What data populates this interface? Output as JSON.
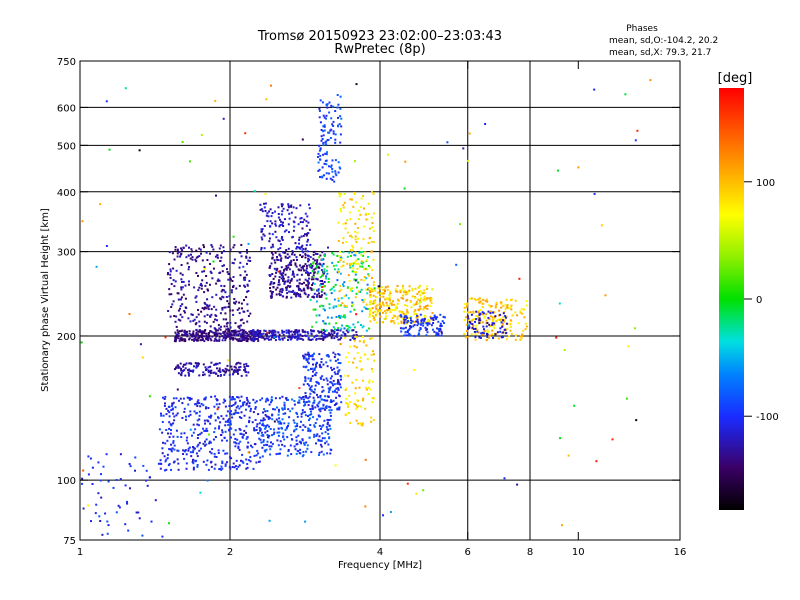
{
  "chart_data": {
    "type": "scatter",
    "title": "Tromsø 20150923 23:02:00–23:03:43",
    "subtitle": "RwPretec (8p)",
    "xlabel": "Frequency [MHz]",
    "ylabel": "Stationary phase Virtual Height [km]",
    "x_scale": "log",
    "y_scale": "log",
    "xlim": [
      1,
      16
    ],
    "ylim": [
      75,
      750
    ],
    "x_ticks": [
      1,
      2,
      4,
      6,
      8,
      10,
      16
    ],
    "x_tick_labels": [
      "1",
      "2",
      "4",
      "6",
      "8",
      "10",
      "16"
    ],
    "x_gridlines": [
      2,
      4,
      6,
      8
    ],
    "y_ticks": [
      75,
      100,
      200,
      300,
      400,
      500,
      600,
      750
    ],
    "y_tick_labels": [
      "75",
      "100",
      "200",
      "300",
      "400",
      "500",
      "600",
      "750"
    ],
    "y_gridlines": [
      100,
      200,
      300,
      400,
      500,
      600
    ],
    "grid": true,
    "stats": {
      "heading": "Phases",
      "line_o": "mean, sd,O:-104.2, 20.2",
      "line_x": "mean, sd,X: 79.3, 21.7"
    },
    "colorbar": {
      "label": "[deg]",
      "range": [
        -180,
        180
      ],
      "ticks": [
        100,
        0,
        -100
      ],
      "tick_labels": [
        "100",
        "0",
        "-100"
      ],
      "placement": "right"
    },
    "clusters": [
      {
        "f": [
          1.55,
          2.3
        ],
        "h": [
          195,
          206
        ],
        "phase": [
          -150,
          -120
        ],
        "n": 320
      },
      {
        "f": [
          1.55,
          2.2
        ],
        "h": [
          165,
          176
        ],
        "phase": [
          -140,
          -110
        ],
        "n": 130
      },
      {
        "f": [
          1.45,
          2.3
        ],
        "h": [
          105,
          150
        ],
        "phase": [
          -120,
          -85
        ],
        "n": 420
      },
      {
        "f": [
          1.5,
          2.2
        ],
        "h": [
          205,
          310
        ],
        "phase": [
          -150,
          -115
        ],
        "n": 320
      },
      {
        "f": [
          2.4,
          3.1
        ],
        "h": [
          240,
          300
        ],
        "phase": [
          -150,
          -110
        ],
        "n": 300
      },
      {
        "f": [
          2.3,
          2.9
        ],
        "h": [
          300,
          380
        ],
        "phase": [
          -140,
          -100
        ],
        "n": 140
      },
      {
        "f": [
          2.3,
          3.2
        ],
        "h": [
          112,
          150
        ],
        "phase": [
          -115,
          -70
        ],
        "n": 300
      },
      {
        "f": [
          2.8,
          3.35
        ],
        "h": [
          140,
          185
        ],
        "phase": [
          -120,
          -80
        ],
        "n": 200
      },
      {
        "f": [
          3.0,
          3.35
        ],
        "h": [
          420,
          640
        ],
        "phase": [
          -110,
          -70
        ],
        "n": 110
      },
      {
        "f": [
          2.2,
          3.6
        ],
        "h": [
          196,
          206
        ],
        "phase": [
          -140,
          -100
        ],
        "n": 230
      },
      {
        "f": [
          2.9,
          3.8
        ],
        "h": [
          205,
          300
        ],
        "phase": [
          -80,
          20
        ],
        "n": 180
      },
      {
        "f": [
          3.3,
          3.9
        ],
        "h": [
          230,
          400
        ],
        "phase": [
          55,
          110
        ],
        "n": 140
      },
      {
        "f": [
          3.4,
          3.9
        ],
        "h": [
          130,
          200
        ],
        "phase": [
          70,
          110
        ],
        "n": 90
      },
      {
        "f": [
          3.8,
          5.1
        ],
        "h": [
          212,
          255
        ],
        "phase": [
          60,
          120
        ],
        "n": 260
      },
      {
        "f": [
          4.4,
          5.4
        ],
        "h": [
          200,
          222
        ],
        "phase": [
          -120,
          -80
        ],
        "n": 110
      },
      {
        "f": [
          5.9,
          7.9
        ],
        "h": [
          196,
          240
        ],
        "phase": [
          70,
          120
        ],
        "n": 180
      },
      {
        "f": [
          6.0,
          7.2
        ],
        "h": [
          198,
          225
        ],
        "phase": [
          -140,
          -100
        ],
        "n": 70
      },
      {
        "f": [
          1.0,
          1.5
        ],
        "h": [
          76,
          115
        ],
        "phase": [
          -120,
          -80
        ],
        "n": 60
      },
      {
        "f": [
          1.0,
          14.0
        ],
        "h": [
          80,
          700
        ],
        "phase": [
          -180,
          180
        ],
        "n": 110
      }
    ]
  }
}
